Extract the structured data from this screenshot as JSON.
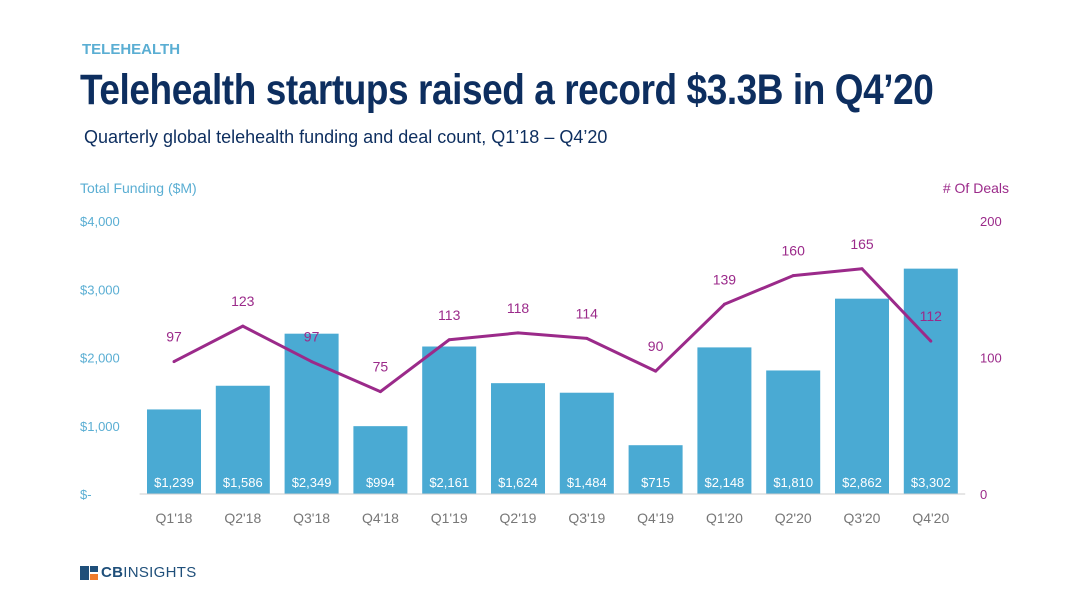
{
  "header": {
    "kicker": "TELEHEALTH",
    "title": "Telehealth startups raised a record $3.3B in Q4’20",
    "subtitle": "Quarterly global telehealth funding and deal count, Q1’18 – Q4’20"
  },
  "logo": {
    "bold": "CB",
    "rest": "INSIGHTS"
  },
  "colors": {
    "bar": "#4aaad3",
    "line": "#9b2a8a",
    "left_axis": "#5aaed3",
    "right_axis": "#9b2a8a",
    "title": "#0d2e5f"
  },
  "chart_data": {
    "type": "bar+line",
    "categories": [
      "Q1'18",
      "Q2'18",
      "Q3'18",
      "Q4'18",
      "Q1'19",
      "Q2'19",
      "Q3'19",
      "Q4'19",
      "Q1'20",
      "Q2'20",
      "Q3'20",
      "Q4'20"
    ],
    "series": [
      {
        "name": "Total Funding ($M)",
        "type": "bar",
        "axis": "left",
        "values": [
          1239,
          1586,
          2349,
          994,
          2161,
          1624,
          1484,
          715,
          2148,
          1810,
          2862,
          3302
        ],
        "labels": [
          "$1,239",
          "$1,586",
          "$2,349",
          "$994",
          "$2,161",
          "$1,624",
          "$1,484",
          "$715",
          "$2,148",
          "$1,810",
          "$2,862",
          "$3,302"
        ]
      },
      {
        "name": "# Of Deals",
        "type": "line",
        "axis": "right",
        "values": [
          97,
          123,
          97,
          75,
          113,
          118,
          114,
          90,
          139,
          160,
          165,
          112
        ]
      }
    ],
    "left_axis": {
      "label": "Total Funding ($M)",
      "range": [
        0,
        4000
      ],
      "ticks": [
        0,
        1000,
        2000,
        3000,
        4000
      ],
      "tick_labels": [
        "$-",
        "$1,000",
        "$2,000",
        "$3,000",
        "$4,000"
      ]
    },
    "right_axis": {
      "label": "# Of Deals",
      "range": [
        0,
        200
      ],
      "ticks": [
        0,
        100,
        200
      ],
      "tick_labels": [
        "0",
        "100",
        "200"
      ]
    },
    "grid": false,
    "legend": "none"
  }
}
